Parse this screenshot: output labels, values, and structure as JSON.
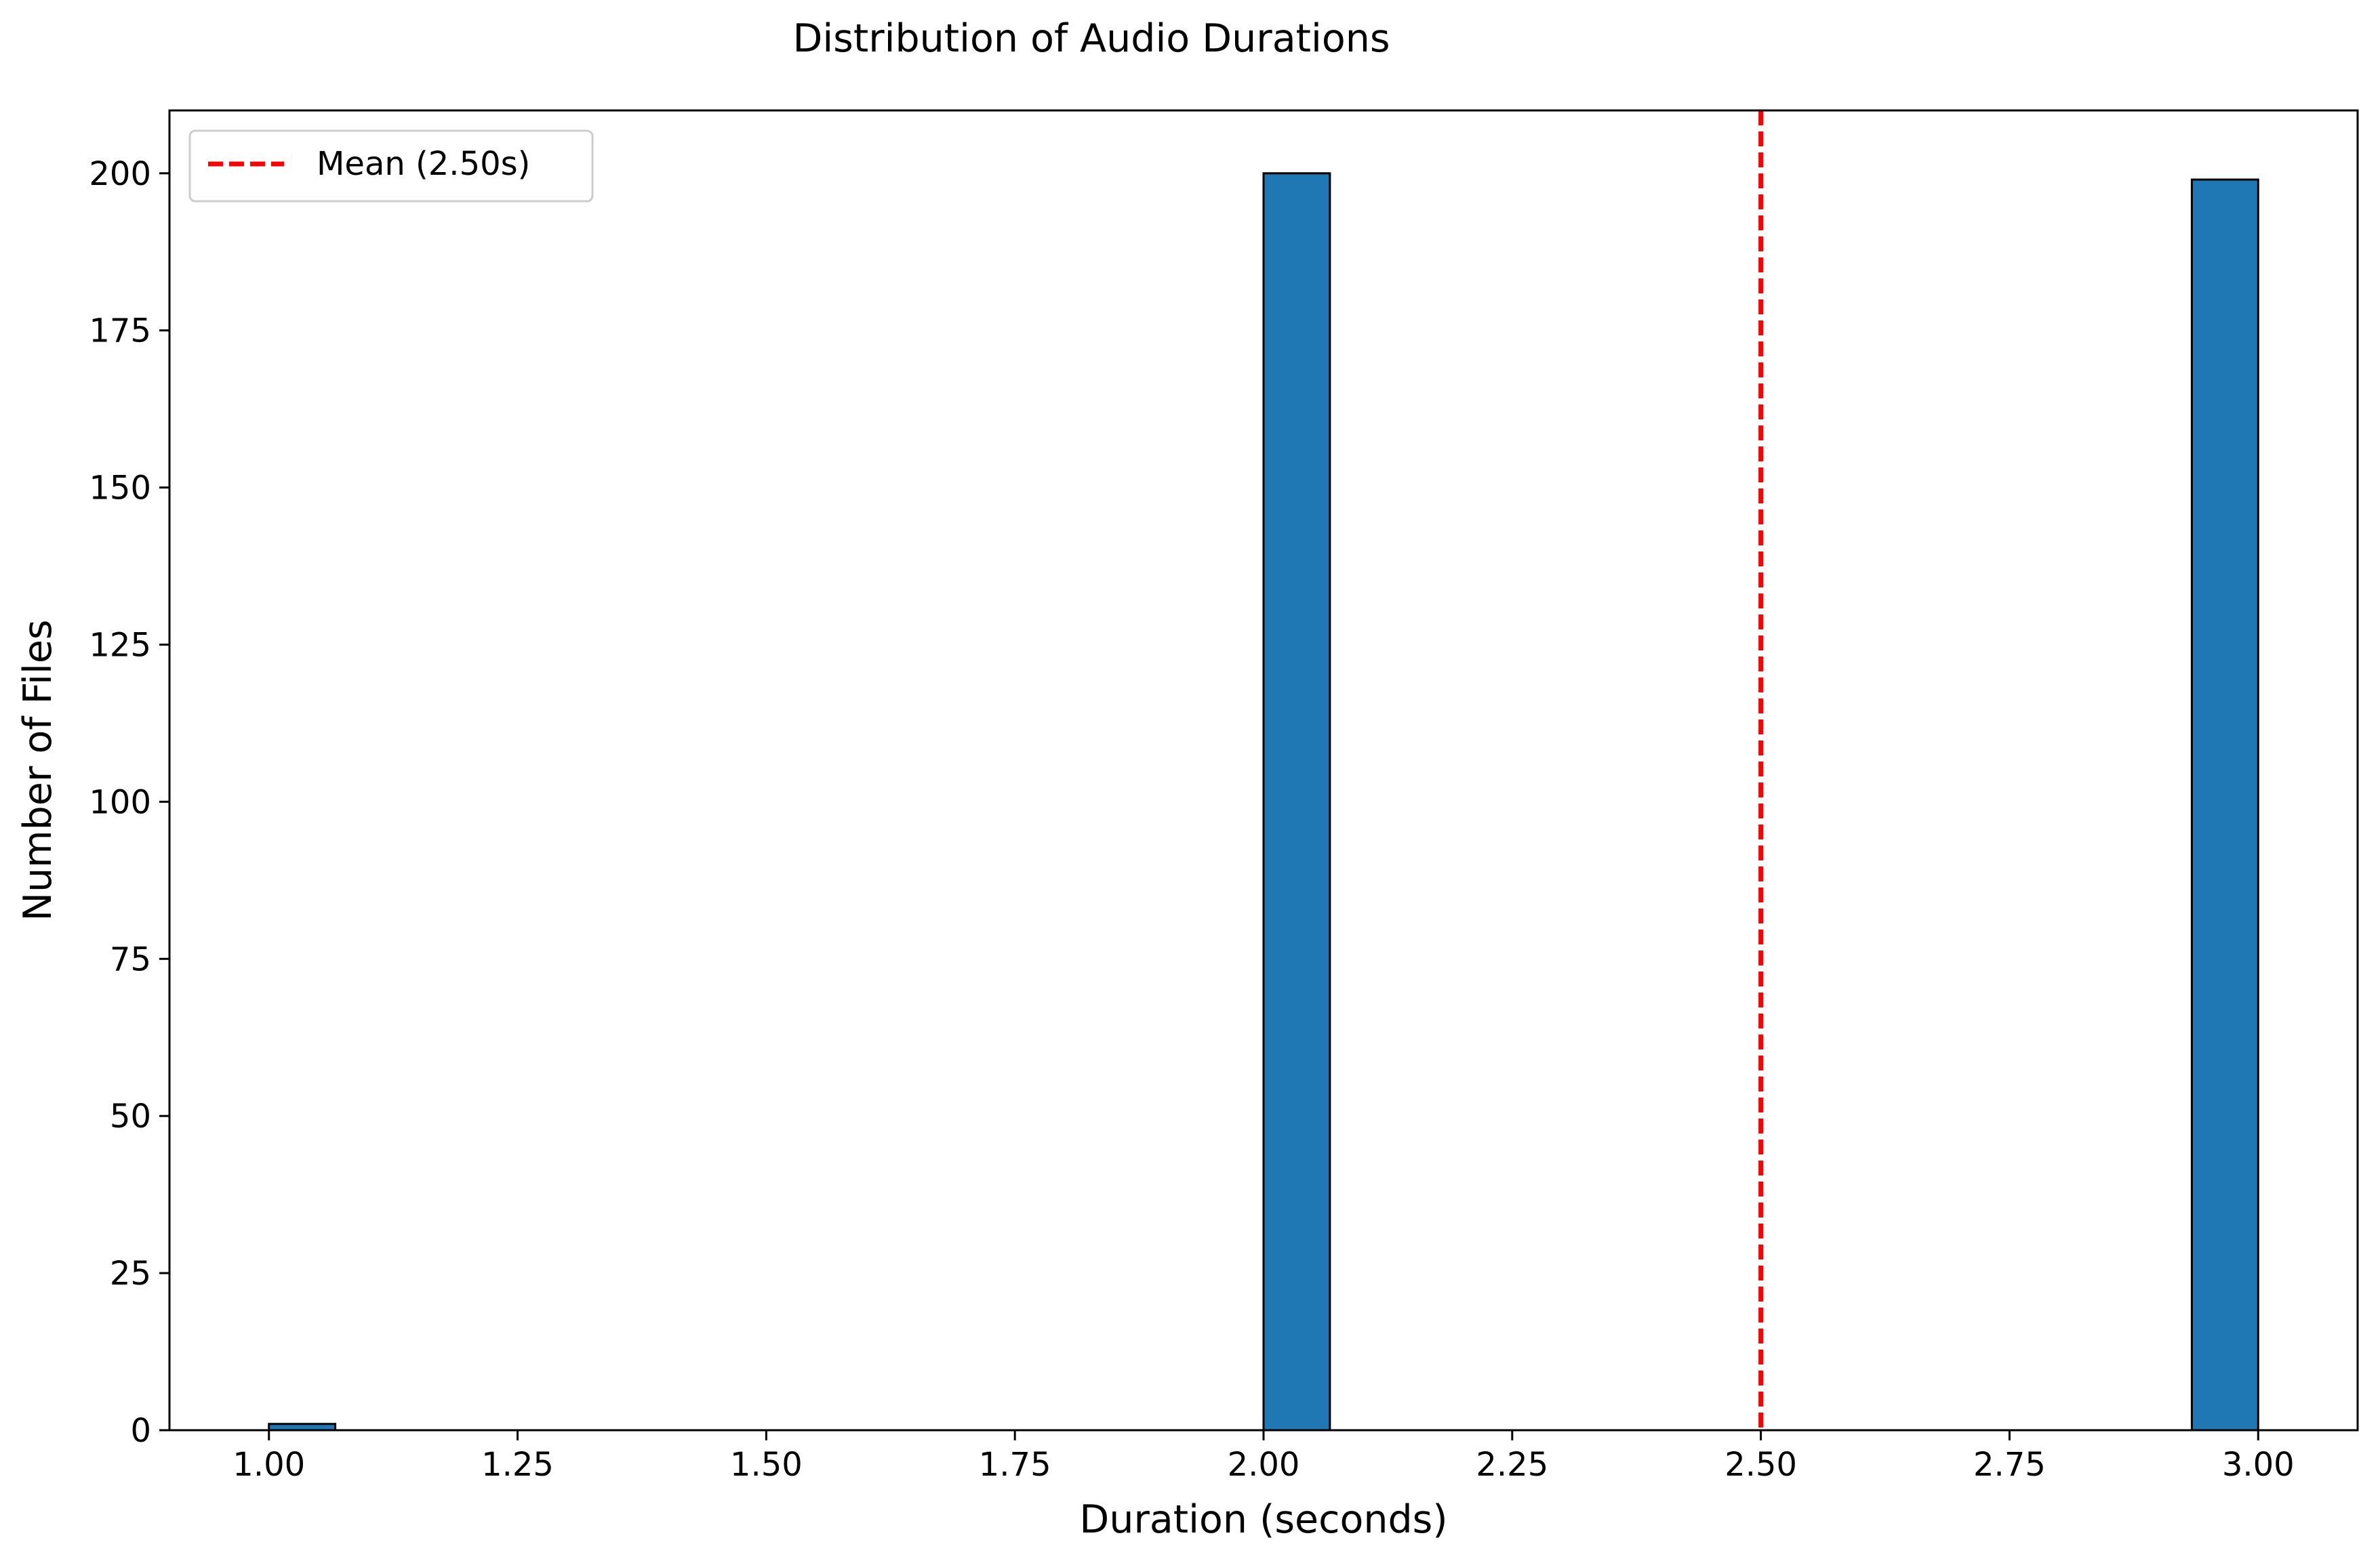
{
  "chart_data": {
    "type": "bar",
    "title": "Distribution of Audio Durations",
    "xlabel": "Duration (seconds)",
    "ylabel": "Number of Files",
    "xlim": [
      0.9,
      3.1
    ],
    "ylim": [
      0,
      210
    ],
    "x_ticks": [
      1.0,
      1.25,
      1.5,
      1.75,
      2.0,
      2.25,
      2.5,
      2.75,
      3.0
    ],
    "x_tick_labels": [
      "1.00",
      "1.25",
      "1.50",
      "1.75",
      "2.00",
      "2.25",
      "2.50",
      "2.75",
      "3.00"
    ],
    "y_ticks": [
      0,
      25,
      50,
      75,
      100,
      125,
      150,
      175,
      200
    ],
    "y_tick_labels": [
      "0",
      "25",
      "50",
      "75",
      "100",
      "125",
      "150",
      "175",
      "200"
    ],
    "bins": [
      {
        "x0": 1.0,
        "x1": 1.0667,
        "count": 1
      },
      {
        "x0": 2.0,
        "x1": 2.0667,
        "count": 200
      },
      {
        "x0": 2.9333,
        "x1": 3.0,
        "count": 199
      }
    ],
    "mean_line": {
      "x": 2.5,
      "label": "Mean (2.50s)",
      "color": "#ff0000",
      "style": "dashed"
    },
    "bar_color": "#1f77b4",
    "bar_edge_color": "#000000",
    "grid": false,
    "legend_position": "top-left"
  }
}
